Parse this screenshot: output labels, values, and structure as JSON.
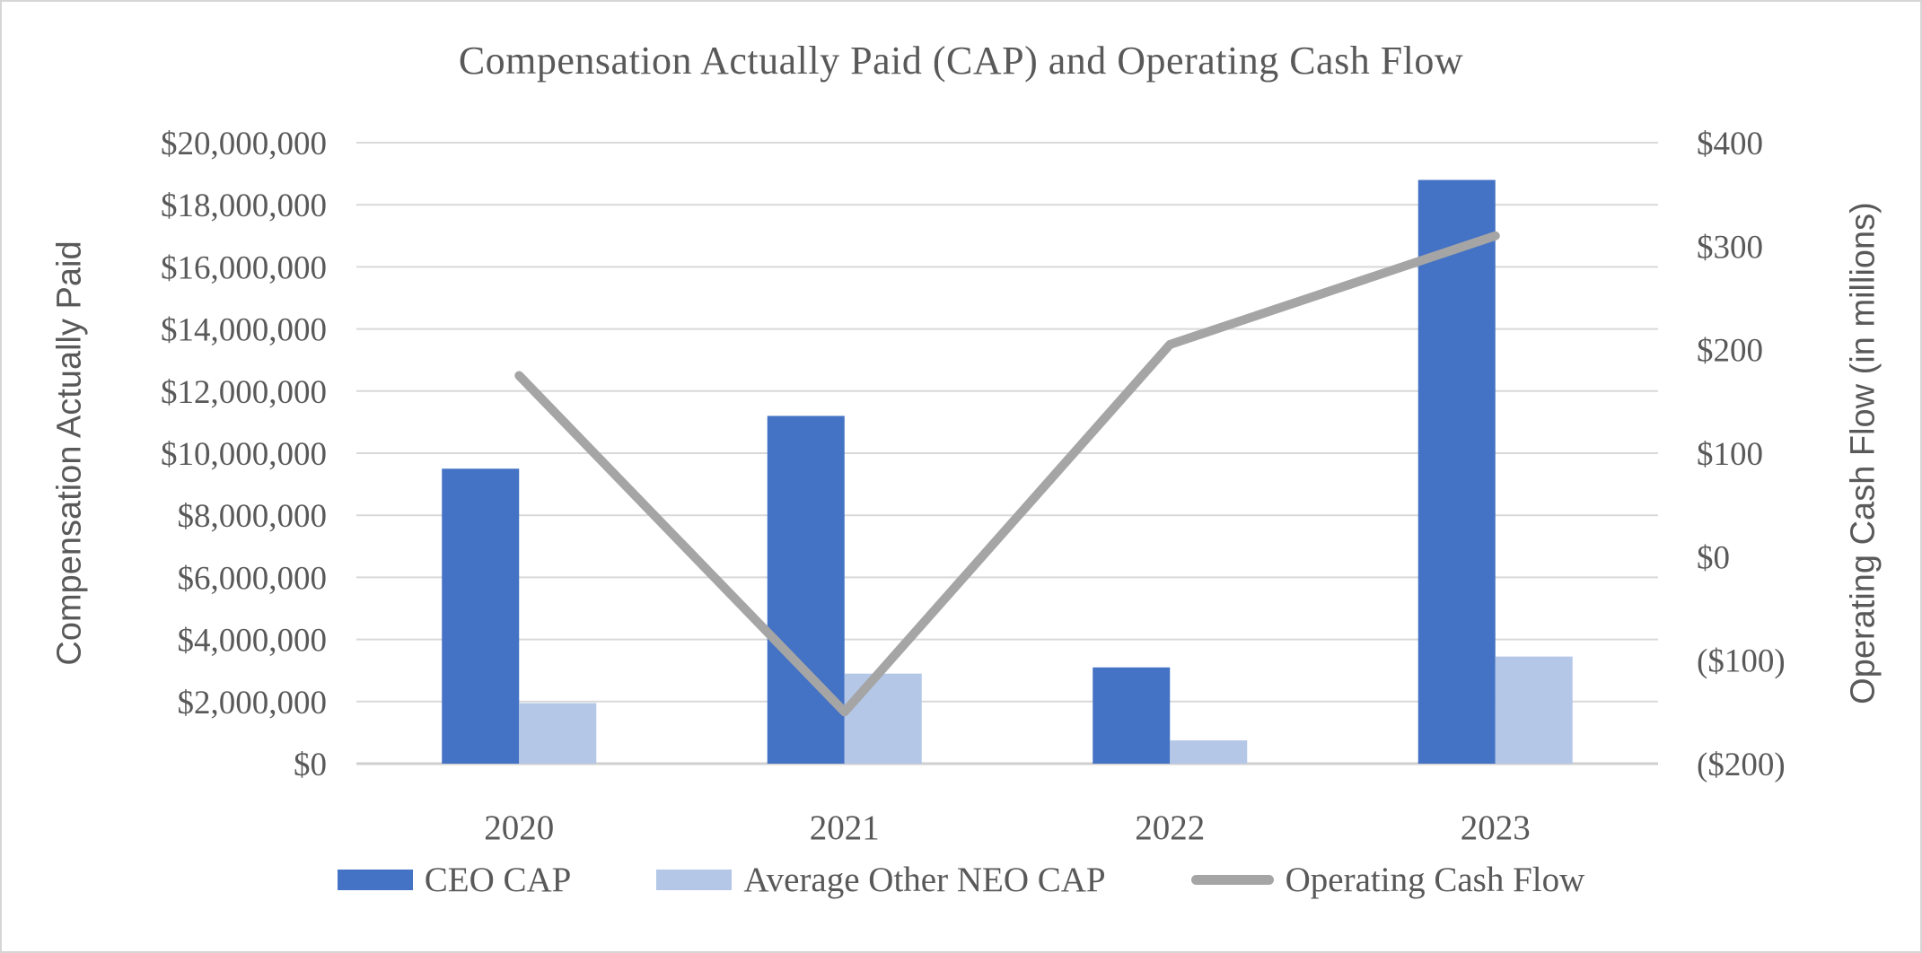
{
  "title": "Compensation Actually Paid (CAP) and Operating Cash Flow",
  "left_axis": {
    "title": "Compensation Actually Paid",
    "tick_labels": [
      "$0",
      "$2,000,000",
      "$4,000,000",
      "$6,000,000",
      "$8,000,000",
      "$10,000,000",
      "$12,000,000",
      "$14,000,000",
      "$16,000,000",
      "$18,000,000",
      "$20,000,000"
    ],
    "tick_values": [
      0,
      2000000,
      4000000,
      6000000,
      8000000,
      10000000,
      12000000,
      14000000,
      16000000,
      18000000,
      20000000
    ],
    "min": 0,
    "max": 20000000
  },
  "right_axis": {
    "title": "Operating Cash Flow (in millions)",
    "tick_labels": [
      "($200)",
      "($100)",
      "$0",
      "$100",
      "$200",
      "$300",
      "$400"
    ],
    "tick_values": [
      -200,
      -100,
      0,
      100,
      200,
      300,
      400
    ],
    "min": -200,
    "max": 400
  },
  "x_axis": {
    "categories": [
      "2020",
      "2021",
      "2022",
      "2023"
    ]
  },
  "legend": [
    {
      "label": "CEO CAP",
      "swatch": "bar",
      "color": "#4472C4"
    },
    {
      "label": "Average Other NEO CAP",
      "swatch": "bar",
      "color": "#B4C7E7"
    },
    {
      "label": "Operating Cash Flow",
      "swatch": "line",
      "color": "#A5A5A5"
    }
  ],
  "colors": {
    "ceo_bar": "#4472C4",
    "neo_bar": "#B4C7E7",
    "line_gray": "#A5A5A5",
    "gridline": "#D9D9D9",
    "axis_line": "#CFCFCF",
    "text": "#595959"
  },
  "chart_data": {
    "type": "combo",
    "categories": [
      "2020",
      "2021",
      "2022",
      "2023"
    ],
    "series": [
      {
        "name": "CEO CAP",
        "type": "bar",
        "axis": "left",
        "color": "#4472C4",
        "values": [
          9500000,
          11200000,
          3100000,
          18800000
        ]
      },
      {
        "name": "Average Other NEO CAP",
        "type": "bar",
        "axis": "left",
        "color": "#B4C7E7",
        "values": [
          1950000,
          2900000,
          750000,
          3450000
        ]
      },
      {
        "name": "Operating Cash Flow",
        "type": "line",
        "axis": "right",
        "color": "#A5A5A5",
        "values": [
          175,
          -150,
          205,
          310
        ]
      }
    ],
    "title": "Compensation Actually Paid (CAP) and Operating Cash Flow",
    "xlabel": "",
    "ylabel_left": "Compensation Actually Paid",
    "ylabel_right": "Operating Cash Flow (in millions)",
    "ylim_left": [
      0,
      20000000
    ],
    "ylim_right": [
      -200,
      400
    ],
    "grid": true,
    "legend_position": "bottom"
  }
}
